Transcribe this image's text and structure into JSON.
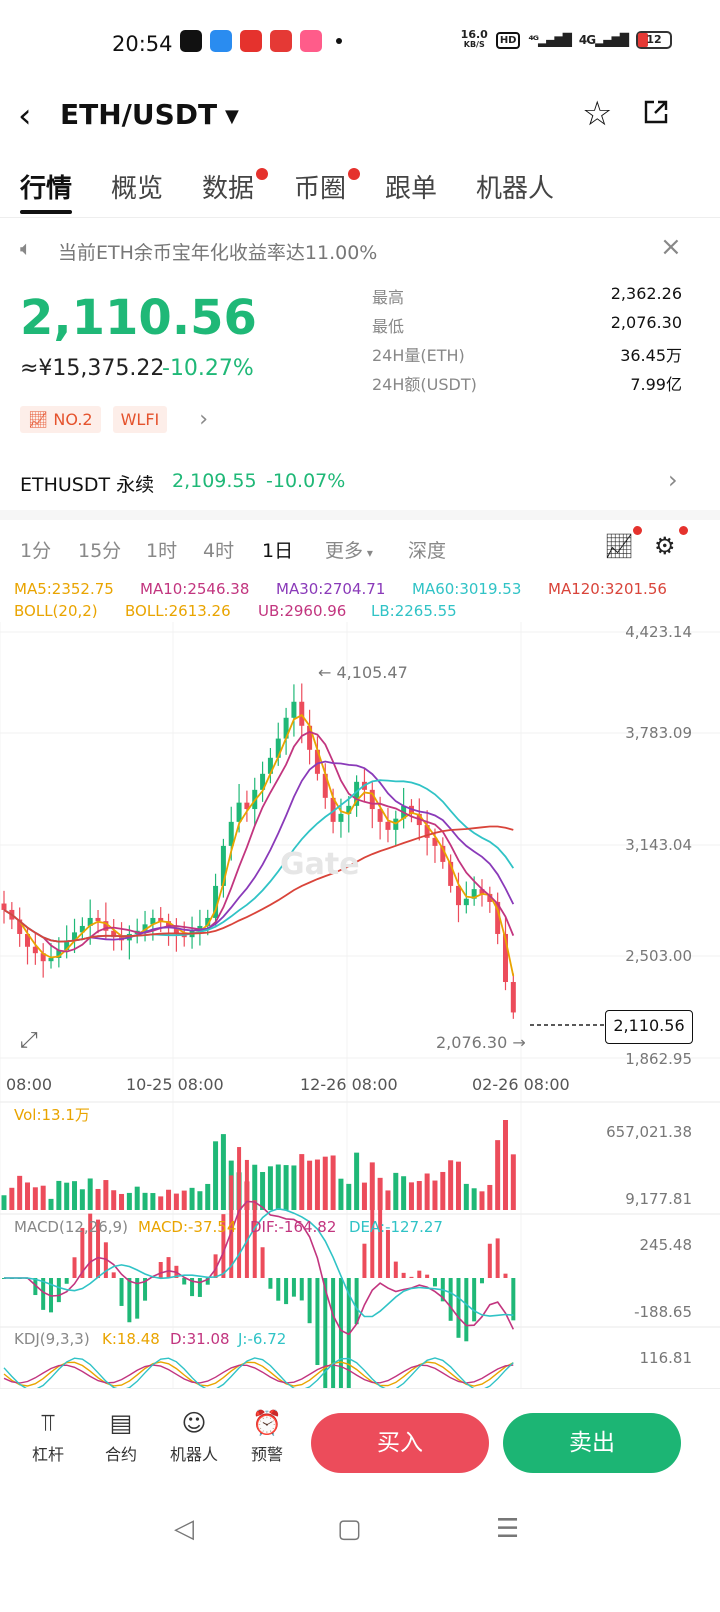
{
  "status_bar": {
    "time": "20:54",
    "net_speed": "16.0",
    "net_unit": "KB/S",
    "hd": "HD",
    "signal1": "⁴ᴳ",
    "signal2": "4G",
    "battery": "12"
  },
  "header": {
    "pair": "ETH/USDT",
    "back_icon": "chevron-left-icon",
    "star_icon": "star-outline-icon",
    "share_icon": "share-icon"
  },
  "tabs": [
    {
      "label": "行情",
      "active": true,
      "dot": false
    },
    {
      "label": "概览",
      "active": false,
      "dot": false
    },
    {
      "label": "数据",
      "active": false,
      "dot": true
    },
    {
      "label": "币圈",
      "active": false,
      "dot": true
    },
    {
      "label": "跟单",
      "active": false,
      "dot": false
    },
    {
      "label": "机器人",
      "active": false,
      "dot": false
    }
  ],
  "notice": {
    "text": "当前ETH余币宝年化收益率达11.00%"
  },
  "ticker": {
    "price": "2,110.56",
    "cny": "≈¥15,375.22",
    "change": "-10.27%",
    "stats": [
      {
        "label": "最高",
        "value": "2,362.26"
      },
      {
        "label": "最低",
        "value": "2,076.30"
      },
      {
        "label": "24H量(ETH)",
        "value": "36.45万"
      },
      {
        "label": "24H额(USDT)",
        "value": "7.99亿"
      }
    ],
    "tag_rank": "NO.2",
    "tag_token": "WLFI"
  },
  "perpetual": {
    "name": "ETHUSDT 永续",
    "price": "2,109.55",
    "change": "-10.07%"
  },
  "intervals": [
    "1分",
    "15分",
    "1时",
    "4时",
    "1日",
    "更多",
    "深度"
  ],
  "active_interval": "1日",
  "indicators": {
    "ma5": "MA5:2352.75",
    "ma10": "MA10:2546.38",
    "ma30": "MA30:2704.71",
    "ma60": "MA60:3019.53",
    "ma120": "MA120:3201.56",
    "boll": "BOLL(20,2)",
    "boll_mid": "BOLL:2613.26",
    "ub": "UB:2960.96",
    "lb": "LB:2265.55",
    "vol": "Vol:13.1万",
    "macd_title": "MACD(12,26,9)",
    "macd": "MACD:-37.54",
    "dif": "DIF:-164.82",
    "dea": "DEA:-127.27",
    "kdj_title": "KDJ(9,3,3)",
    "k": "K:18.48",
    "d": "D:31.08",
    "j": "J:-6.72"
  },
  "chart_data": {
    "type": "candlestick",
    "y_axis_labels": [
      "4,423.14",
      "3,783.09",
      "3,143.04",
      "2,503.00",
      "1,862.95"
    ],
    "x_axis_labels": [
      "08:00",
      "10-25 08:00",
      "12-26 08:00",
      "02-26 08:00"
    ],
    "high_marker": "← 4,105.47",
    "low_marker": "2,076.30 →",
    "last_price": "2,110.56",
    "ylim": [
      1862.95,
      4423.14
    ],
    "volume_axis": [
      "657,021.38",
      "9,177.81"
    ],
    "macd_axis": [
      "245.48",
      "-188.65"
    ],
    "kdj_axis": [
      "116.81"
    ],
    "close_series": [
      2750,
      2690,
      2600,
      2520,
      2480,
      2430,
      2450,
      2500,
      2560,
      2610,
      2650,
      2700,
      2680,
      2620,
      2580,
      2560,
      2600,
      2620,
      2660,
      2700,
      2680,
      2640,
      2600,
      2580,
      2620,
      2650,
      2700,
      2900,
      3150,
      3300,
      3420,
      3380,
      3500,
      3600,
      3700,
      3820,
      3950,
      4050,
      3900,
      3750,
      3600,
      3450,
      3300,
      3350,
      3400,
      3550,
      3500,
      3380,
      3300,
      3250,
      3320,
      3400,
      3350,
      3280,
      3200,
      3150,
      3050,
      2900,
      2780,
      2820,
      2880,
      2850,
      2800,
      2600,
      2300,
      2110
    ]
  },
  "colors": {
    "up": "#1fb877",
    "down": "#ec4c5b",
    "ma5": "#e9a400",
    "ma10": "#c2357f",
    "ma30": "#8a3ab9",
    "ma60": "#30c3c6",
    "ma120": "#d9443a"
  },
  "bottom_tools": [
    {
      "label": "杠杆",
      "icon": "leverage-icon"
    },
    {
      "label": "合约",
      "icon": "contract-icon"
    },
    {
      "label": "机器人",
      "icon": "robot-icon"
    },
    {
      "label": "预警",
      "icon": "alarm-icon"
    }
  ],
  "buy_label": "买入",
  "sell_label": "卖出"
}
